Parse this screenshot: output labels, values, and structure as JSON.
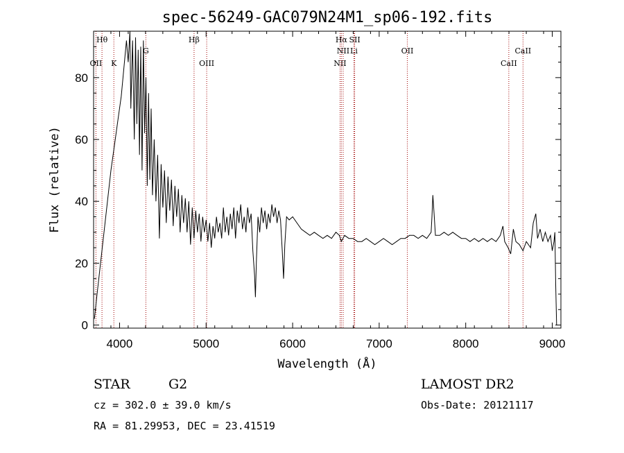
{
  "chart_data": {
    "type": "line",
    "title": "spec-56249-GAC079N24M1_sp06-192.fits",
    "xlabel": "Wavelength (Å)",
    "ylabel": "Flux (relative)",
    "xlim": [
      3700,
      9100
    ],
    "ylim": [
      -1,
      95
    ],
    "x_ticks": [
      4000,
      5000,
      6000,
      7000,
      8000,
      9000
    ],
    "y_ticks": [
      0,
      20,
      40,
      60,
      80
    ],
    "grid": false,
    "series": [
      {
        "color": "#000000",
        "points": [
          [
            3710,
            2
          ],
          [
            3740,
            10
          ],
          [
            3780,
            20
          ],
          [
            3820,
            30
          ],
          [
            3860,
            40
          ],
          [
            3900,
            50
          ],
          [
            3940,
            58
          ],
          [
            3980,
            66
          ],
          [
            4020,
            74
          ],
          [
            4060,
            86
          ],
          [
            4080,
            92
          ],
          [
            4100,
            85
          ],
          [
            4120,
            95
          ],
          [
            4130,
            70
          ],
          [
            4150,
            92
          ],
          [
            4170,
            60
          ],
          [
            4185,
            93
          ],
          [
            4200,
            65
          ],
          [
            4215,
            89
          ],
          [
            4230,
            55
          ],
          [
            4245,
            90
          ],
          [
            4260,
            50
          ],
          [
            4275,
            92
          ],
          [
            4290,
            62
          ],
          [
            4305,
            80
          ],
          [
            4320,
            45
          ],
          [
            4335,
            75
          ],
          [
            4350,
            47
          ],
          [
            4365,
            70
          ],
          [
            4380,
            42
          ],
          [
            4400,
            60
          ],
          [
            4420,
            40
          ],
          [
            4440,
            55
          ],
          [
            4460,
            28
          ],
          [
            4480,
            52
          ],
          [
            4500,
            38
          ],
          [
            4520,
            50
          ],
          [
            4540,
            33
          ],
          [
            4560,
            48
          ],
          [
            4580,
            37
          ],
          [
            4600,
            47
          ],
          [
            4620,
            32
          ],
          [
            4640,
            45
          ],
          [
            4660,
            35
          ],
          [
            4680,
            44
          ],
          [
            4700,
            30
          ],
          [
            4720,
            42
          ],
          [
            4740,
            33
          ],
          [
            4760,
            41
          ],
          [
            4780,
            30
          ],
          [
            4800,
            40
          ],
          [
            4820,
            26
          ],
          [
            4840,
            38
          ],
          [
            4860,
            28
          ],
          [
            4880,
            37
          ],
          [
            4900,
            30
          ],
          [
            4920,
            36
          ],
          [
            4940,
            27
          ],
          [
            4960,
            35
          ],
          [
            4980,
            30
          ],
          [
            5000,
            34
          ],
          [
            5020,
            27
          ],
          [
            5040,
            33
          ],
          [
            5060,
            25
          ],
          [
            5080,
            32
          ],
          [
            5100,
            28
          ],
          [
            5120,
            35
          ],
          [
            5140,
            30
          ],
          [
            5160,
            33
          ],
          [
            5180,
            28
          ],
          [
            5200,
            38
          ],
          [
            5220,
            30
          ],
          [
            5240,
            35
          ],
          [
            5260,
            29
          ],
          [
            5280,
            36
          ],
          [
            5300,
            31
          ],
          [
            5320,
            38
          ],
          [
            5340,
            28
          ],
          [
            5360,
            37
          ],
          [
            5380,
            33
          ],
          [
            5400,
            39
          ],
          [
            5420,
            31
          ],
          [
            5440,
            35
          ],
          [
            5460,
            30
          ],
          [
            5480,
            38
          ],
          [
            5500,
            33
          ],
          [
            5520,
            36
          ],
          [
            5540,
            24
          ],
          [
            5560,
            16
          ],
          [
            5570,
            9
          ],
          [
            5580,
            20
          ],
          [
            5600,
            35
          ],
          [
            5620,
            30
          ],
          [
            5640,
            38
          ],
          [
            5660,
            33
          ],
          [
            5680,
            37
          ],
          [
            5700,
            31
          ],
          [
            5720,
            36
          ],
          [
            5740,
            33
          ],
          [
            5760,
            39
          ],
          [
            5780,
            35
          ],
          [
            5800,
            38
          ],
          [
            5820,
            33
          ],
          [
            5840,
            37
          ],
          [
            5860,
            34
          ],
          [
            5880,
            24
          ],
          [
            5895,
            15
          ],
          [
            5910,
            26
          ],
          [
            5930,
            35
          ],
          [
            5960,
            34
          ],
          [
            6000,
            35
          ],
          [
            6050,
            33
          ],
          [
            6100,
            31
          ],
          [
            6150,
            30
          ],
          [
            6200,
            29
          ],
          [
            6250,
            30
          ],
          [
            6300,
            29
          ],
          [
            6350,
            28
          ],
          [
            6400,
            29
          ],
          [
            6450,
            28
          ],
          [
            6500,
            30
          ],
          [
            6540,
            29
          ],
          [
            6563,
            27
          ],
          [
            6600,
            29
          ],
          [
            6650,
            28
          ],
          [
            6700,
            28
          ],
          [
            6750,
            27
          ],
          [
            6800,
            27
          ],
          [
            6850,
            28
          ],
          [
            6900,
            27
          ],
          [
            6950,
            26
          ],
          [
            7000,
            27
          ],
          [
            7050,
            28
          ],
          [
            7100,
            27
          ],
          [
            7150,
            26
          ],
          [
            7200,
            27
          ],
          [
            7250,
            28
          ],
          [
            7300,
            28
          ],
          [
            7350,
            29
          ],
          [
            7400,
            29
          ],
          [
            7450,
            28
          ],
          [
            7500,
            29
          ],
          [
            7550,
            28
          ],
          [
            7600,
            30
          ],
          [
            7610,
            35
          ],
          [
            7620,
            42
          ],
          [
            7635,
            36
          ],
          [
            7650,
            29
          ],
          [
            7700,
            29
          ],
          [
            7750,
            30
          ],
          [
            7800,
            29
          ],
          [
            7850,
            30
          ],
          [
            7900,
            29
          ],
          [
            7950,
            28
          ],
          [
            8000,
            28
          ],
          [
            8050,
            27
          ],
          [
            8100,
            28
          ],
          [
            8150,
            27
          ],
          [
            8200,
            28
          ],
          [
            8250,
            27
          ],
          [
            8300,
            28
          ],
          [
            8350,
            27
          ],
          [
            8400,
            29
          ],
          [
            8430,
            32
          ],
          [
            8450,
            27
          ],
          [
            8490,
            25
          ],
          [
            8520,
            23
          ],
          [
            8550,
            31
          ],
          [
            8580,
            27
          ],
          [
            8620,
            26
          ],
          [
            8662,
            24
          ],
          [
            8700,
            27
          ],
          [
            8750,
            25
          ],
          [
            8780,
            33
          ],
          [
            8810,
            36
          ],
          [
            8830,
            28
          ],
          [
            8860,
            31
          ],
          [
            8890,
            27
          ],
          [
            8920,
            30
          ],
          [
            8950,
            27
          ],
          [
            8980,
            29
          ],
          [
            9000,
            24
          ],
          [
            9020,
            27
          ],
          [
            9030,
            30
          ],
          [
            9040,
            13
          ],
          [
            9050,
            0
          ]
        ]
      }
    ],
    "lines": [
      {
        "wavelength": 3727,
        "label": "OII",
        "row": 2
      },
      {
        "wavelength": 3797,
        "label": "Hθ",
        "row": 0
      },
      {
        "wavelength": 3934,
        "label": "K",
        "row": 2
      },
      {
        "wavelength": 4304,
        "label": "G",
        "row": 1
      },
      {
        "wavelength": 4861,
        "label": "Hβ",
        "row": 0
      },
      {
        "wavelength": 5007,
        "label": "OIII",
        "row": 2
      },
      {
        "wavelength": 6548,
        "label": "NII",
        "row": 2
      },
      {
        "wavelength": 6563,
        "label": "Hα",
        "row": 0
      },
      {
        "wavelength": 6584,
        "label": "NII",
        "row": 1
      },
      {
        "wavelength": 6708,
        "label": "Li",
        "row": 1
      },
      {
        "wavelength": 6717,
        "label": "SII",
        "row": 0
      },
      {
        "wavelength": 7325,
        "label": "OII",
        "row": 1
      },
      {
        "wavelength": 8498,
        "label": "CaII",
        "row": 2
      },
      {
        "wavelength": 8662,
        "label": "CaII",
        "row": 1
      }
    ],
    "line_color": "#a00000"
  },
  "info": {
    "object_class": "STAR",
    "subclass": "G2",
    "survey": "LAMOST DR2",
    "redshift": "cz = 302.0 ± 39.0 km/s",
    "obs_date": "Obs-Date: 20121117",
    "coords": "RA =  81.29953, DEC =  23.41519"
  }
}
